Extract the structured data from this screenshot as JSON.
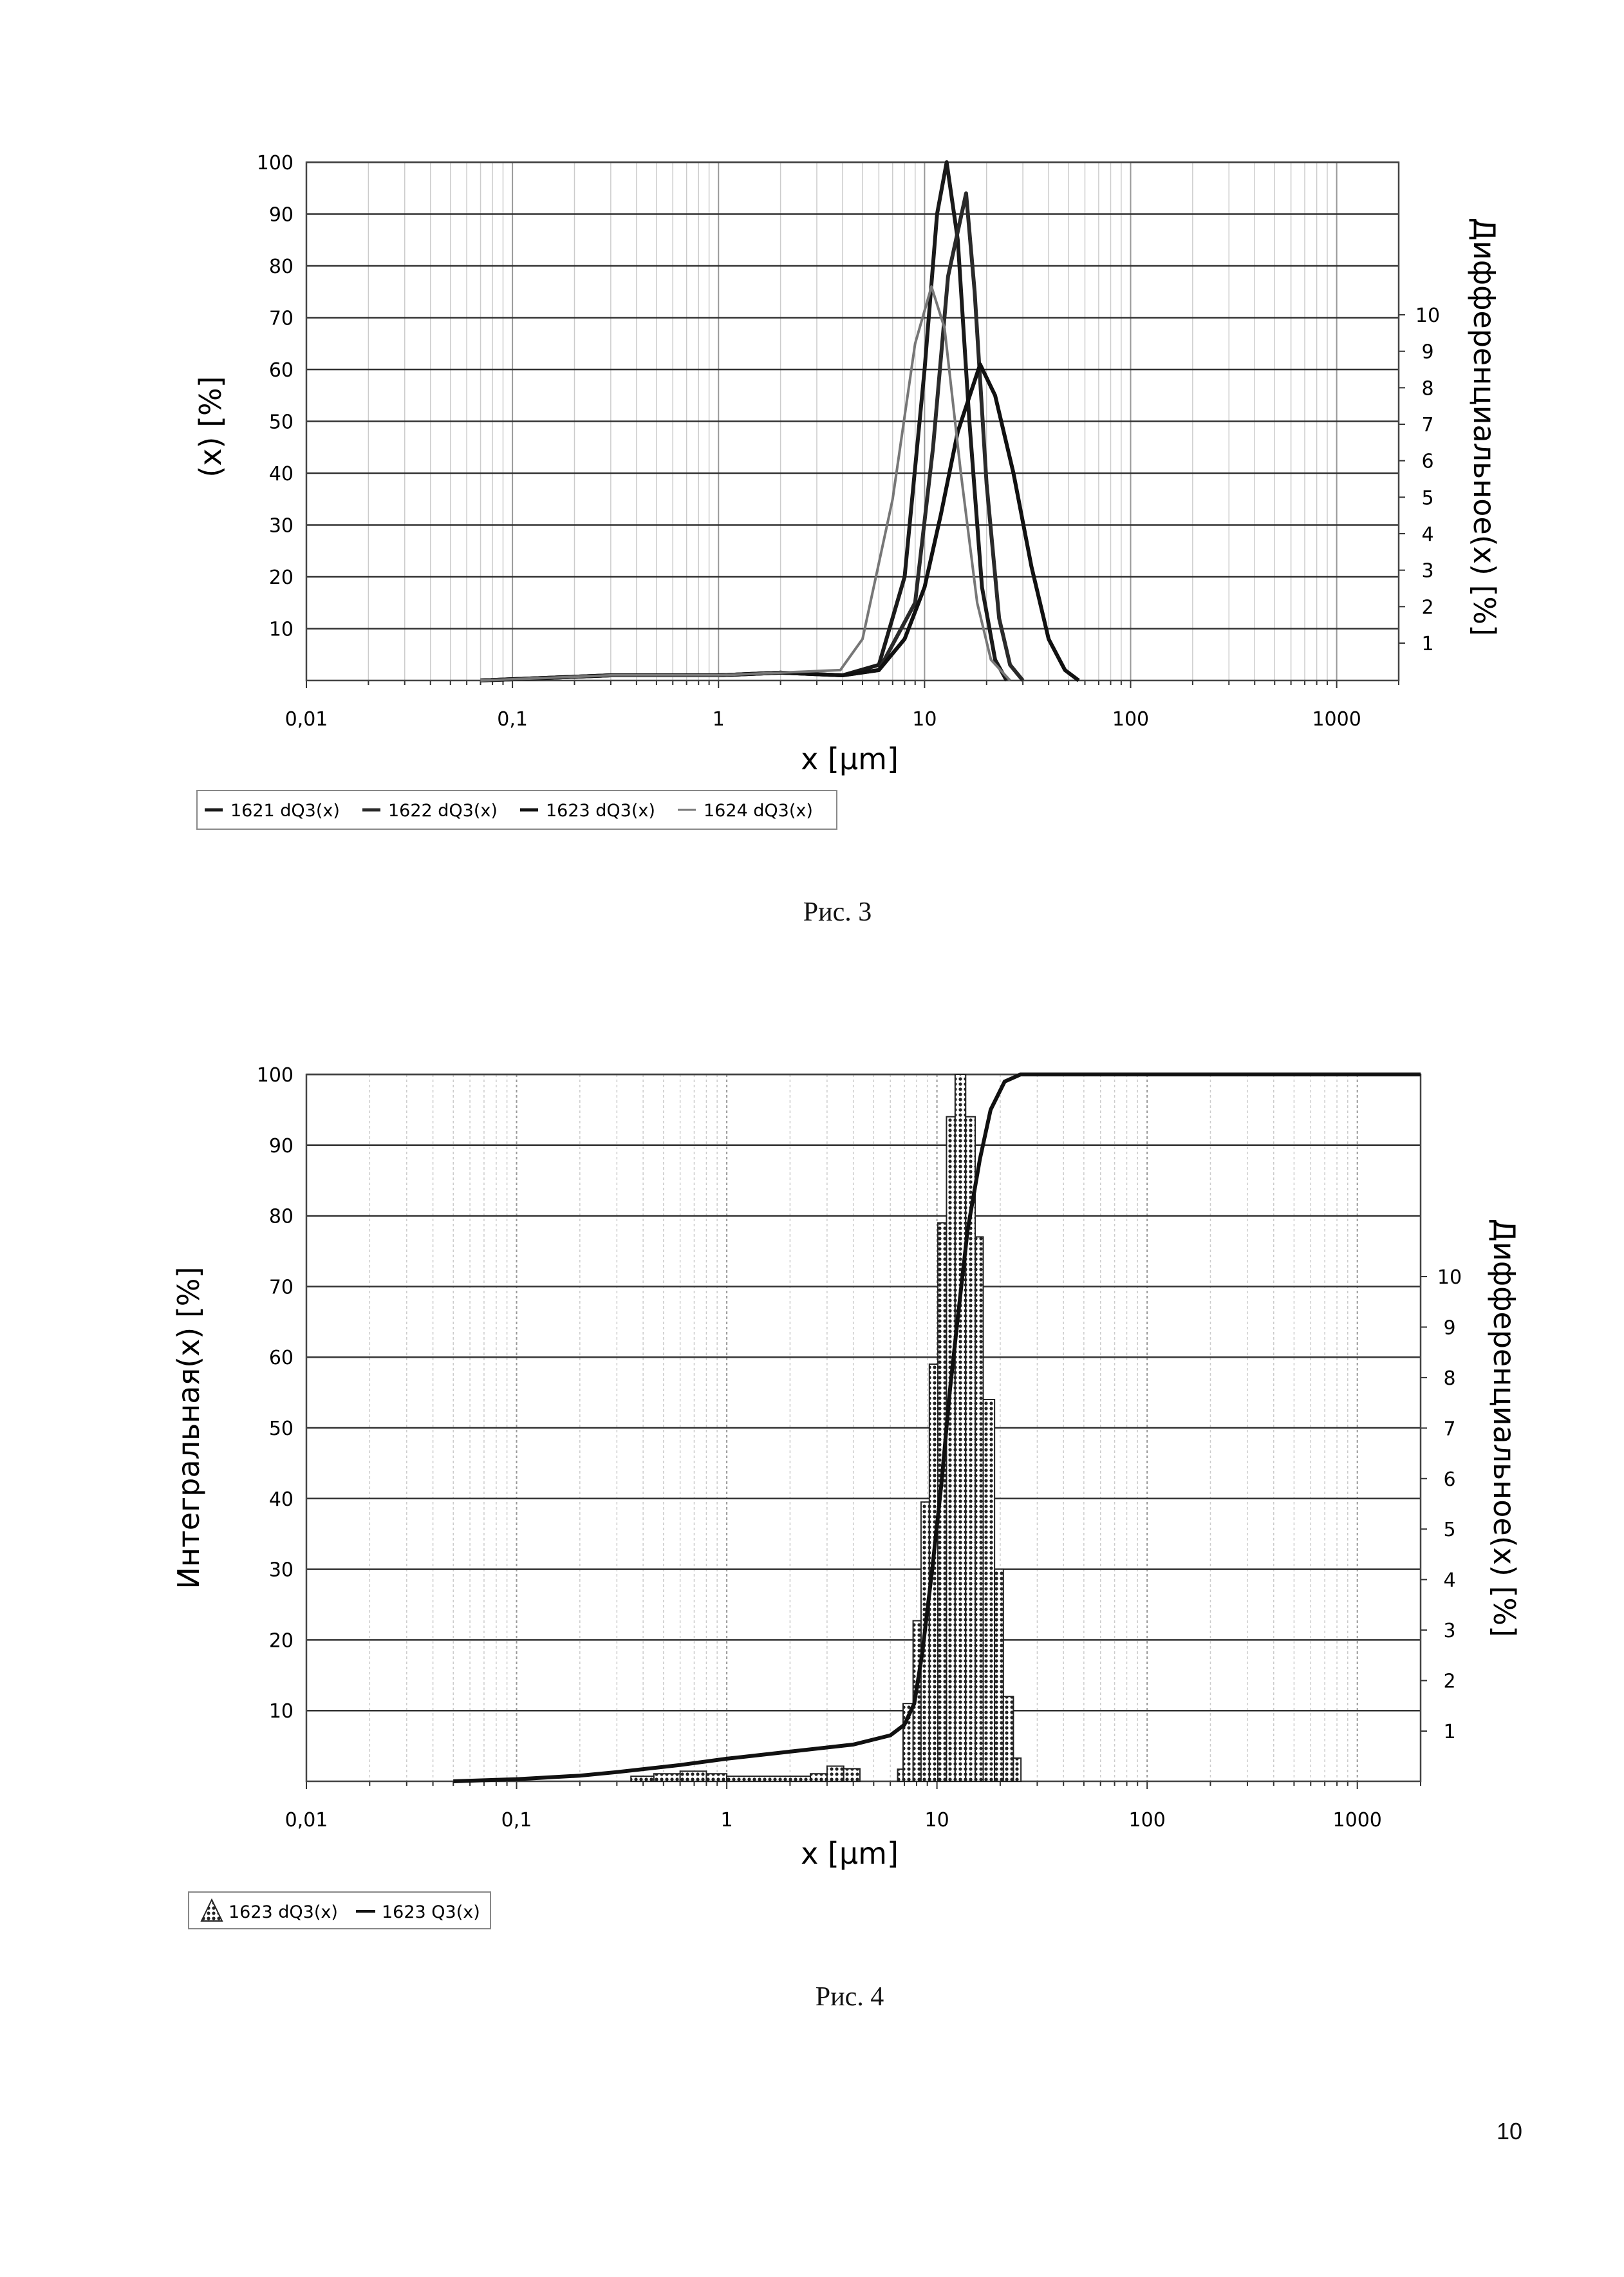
{
  "page_number": "10",
  "chart_data": [
    {
      "type": "line",
      "caption": "Рис. 3",
      "xlabel": "x [µm]",
      "ylabel": "(x) [%]",
      "ylabel_right": "Дифференциальное(x) [%]",
      "xscale": "log",
      "xlim": [
        0.01,
        2000
      ],
      "ylim": [
        0,
        100
      ],
      "x_ticks": [
        "0,01",
        "0,1",
        "1",
        "10",
        "100",
        "1000"
      ],
      "x_tick_values": [
        0.01,
        0.1,
        1,
        10,
        100,
        1000
      ],
      "y_ticks": [
        10,
        20,
        30,
        40,
        50,
        60,
        70,
        80,
        90,
        100
      ],
      "y_right_ticks": [
        "1",
        "2",
        "3",
        "4",
        "5",
        "6",
        "7",
        "8",
        "9",
        "10"
      ],
      "grid": true,
      "legend_position": "bottom-left",
      "series": [
        {
          "name": "1621 dQ3(x)",
          "color": "#1a1a1a",
          "points": [
            [
              0.07,
              0
            ],
            [
              0.3,
              1
            ],
            [
              1,
              1
            ],
            [
              2,
              1.5
            ],
            [
              4,
              1
            ],
            [
              6,
              3
            ],
            [
              8,
              20
            ],
            [
              10,
              60
            ],
            [
              11.5,
              90
            ],
            [
              12.8,
              100
            ],
            [
              14.5,
              85
            ],
            [
              16.5,
              50
            ],
            [
              19,
              18
            ],
            [
              22,
              4
            ],
            [
              25,
              0
            ]
          ]
        },
        {
          "name": "1622 dQ3(x)",
          "color": "#2a2a2a",
          "points": [
            [
              0.07,
              0
            ],
            [
              0.3,
              1
            ],
            [
              1,
              1
            ],
            [
              2,
              1.5
            ],
            [
              4,
              1
            ],
            [
              6,
              2
            ],
            [
              9,
              15
            ],
            [
              11,
              45
            ],
            [
              13,
              78
            ],
            [
              15.9,
              94
            ],
            [
              17.5,
              75
            ],
            [
              20,
              38
            ],
            [
              23,
              12
            ],
            [
              26,
              3
            ],
            [
              30,
              0
            ]
          ]
        },
        {
          "name": "1623 dQ3(x)",
          "color": "#111111",
          "points": [
            [
              0.07,
              0
            ],
            [
              0.3,
              1
            ],
            [
              1,
              1
            ],
            [
              2,
              1.5
            ],
            [
              4,
              1
            ],
            [
              6,
              2
            ],
            [
              8,
              8
            ],
            [
              10,
              18
            ],
            [
              12,
              32
            ],
            [
              14.5,
              48
            ],
            [
              18.6,
              61
            ],
            [
              22,
              55
            ],
            [
              27,
              40
            ],
            [
              33,
              22
            ],
            [
              40,
              8
            ],
            [
              48,
              2
            ],
            [
              56,
              0
            ]
          ]
        },
        {
          "name": "1624 dQ3(x)",
          "color": "#777777",
          "points": [
            [
              0.07,
              0
            ],
            [
              0.3,
              1
            ],
            [
              1,
              1
            ],
            [
              2,
              1.5
            ],
            [
              3.9,
              2
            ],
            [
              5,
              8
            ],
            [
              7,
              35
            ],
            [
              9,
              65
            ],
            [
              10.8,
              76
            ],
            [
              12.5,
              68
            ],
            [
              15,
              40
            ],
            [
              18,
              15
            ],
            [
              21,
              4
            ],
            [
              26,
              0
            ]
          ]
        }
      ]
    },
    {
      "type": "bar+line",
      "caption": "Рис. 4",
      "xlabel": "x [µm]",
      "ylabel": "Интегральная(x) [%]",
      "ylabel_right": "Дифференциальное(x) [%]",
      "xscale": "log",
      "xlim": [
        0.01,
        2000
      ],
      "ylim": [
        0,
        100
      ],
      "y_right_scale": "1 ≈ 7.1 on left axis",
      "x_ticks": [
        "0,01",
        "0,1",
        "1",
        "10",
        "100",
        "1000"
      ],
      "x_tick_values": [
        0.01,
        0.1,
        1,
        10,
        100,
        1000
      ],
      "y_ticks": [
        10,
        20,
        30,
        40,
        50,
        60,
        70,
        80,
        90,
        100
      ],
      "y_right_ticks": [
        "1",
        "2",
        "3",
        "4",
        "5",
        "6",
        "7",
        "8",
        "9",
        "10"
      ],
      "grid": true,
      "legend_position": "bottom-left",
      "histogram": {
        "name": "1623 dQ3(x)",
        "bin_edges": [
          6.5,
          6.9,
          7.7,
          8.4,
          9.2,
          10.1,
          11.1,
          12.2,
          13.7,
          15.2,
          16.6,
          18.8,
          20.7,
          23.1,
          25.1
        ],
        "values": [
          0.24,
          1.54,
          3.18,
          5.53,
          8.26,
          11.06,
          13.16,
          14.0,
          13.16,
          10.78,
          7.56,
          4.2,
          1.68,
          0.46
        ],
        "small_bin_edges": [
          0.35,
          0.45,
          0.6,
          0.8,
          1.0,
          2.5,
          3.0,
          3.6,
          4.3
        ],
        "small_values": [
          0.1,
          0.15,
          0.2,
          0.15,
          0.1,
          0.15,
          0.3,
          0.25
        ]
      },
      "cumulative": {
        "name": "1623 Q3(x)",
        "color": "#111111",
        "points": [
          [
            0.05,
            0
          ],
          [
            0.1,
            0.3
          ],
          [
            0.2,
            0.8
          ],
          [
            0.3,
            1.3
          ],
          [
            0.6,
            2.3
          ],
          [
            1,
            3.2
          ],
          [
            2,
            4.2
          ],
          [
            4,
            5.2
          ],
          [
            6,
            6.5
          ],
          [
            7,
            8
          ],
          [
            7.8,
            11
          ],
          [
            8.5,
            18
          ],
          [
            9.5,
            30
          ],
          [
            10.5,
            42
          ],
          [
            11.5,
            55
          ],
          [
            12.5,
            65
          ],
          [
            14,
            78
          ],
          [
            16,
            88
          ],
          [
            18,
            95
          ],
          [
            21,
            99
          ],
          [
            25,
            100
          ],
          [
            2000,
            100
          ]
        ]
      }
    }
  ]
}
